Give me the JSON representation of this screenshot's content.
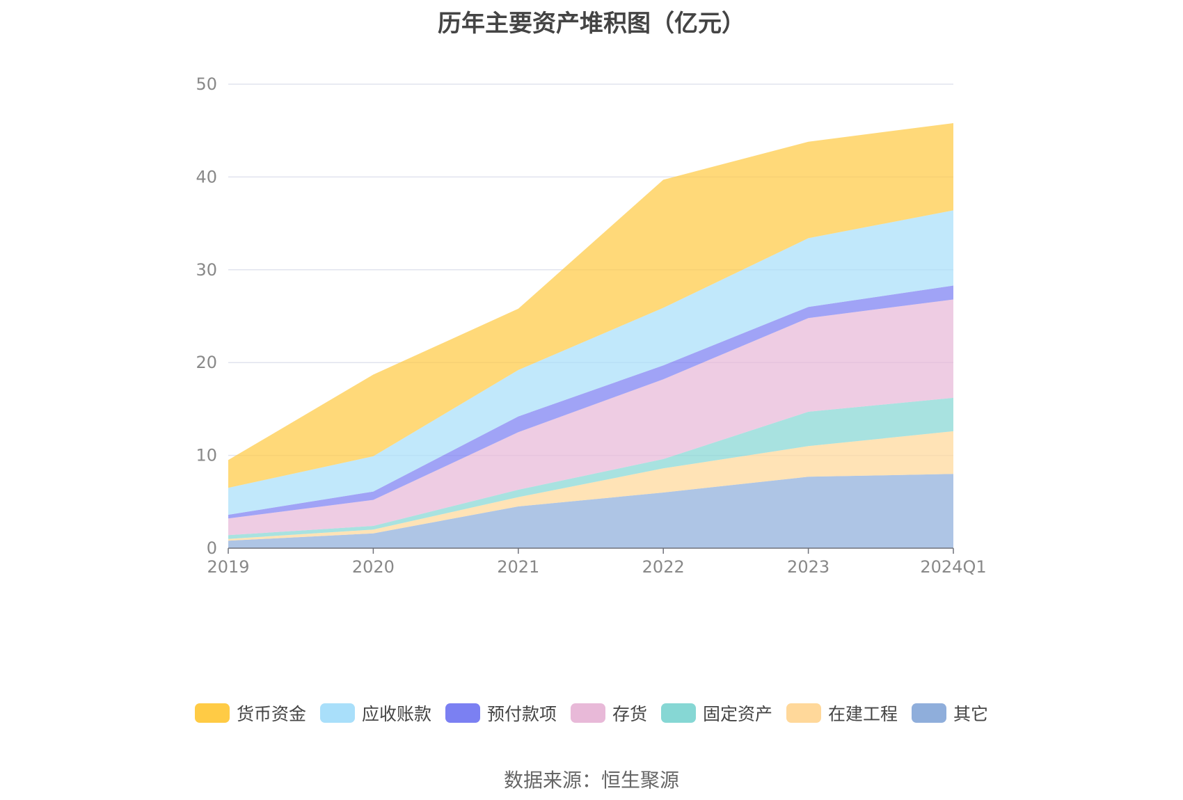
{
  "chart_data": {
    "type": "area",
    "title": "历年主要资产堆积图（亿元）",
    "xlabel": "",
    "ylabel": "",
    "ylim": [
      0,
      50
    ],
    "yticks": [
      0,
      10,
      20,
      30,
      40,
      50
    ],
    "categories": [
      "2019",
      "2020",
      "2021",
      "2022",
      "2023",
      "2024Q1"
    ],
    "stacked": true,
    "grid": true,
    "legend_position": "bottom",
    "series": [
      {
        "name": "其它",
        "color": "#8FAEDB",
        "values": [
          0.8,
          1.6,
          4.5,
          6.0,
          7.7,
          8.0
        ]
      },
      {
        "name": "在建工程",
        "color": "#FFD89A",
        "values": [
          0.2,
          0.4,
          1.0,
          2.6,
          3.3,
          4.6
        ]
      },
      {
        "name": "固定资产",
        "color": "#86D7D4",
        "values": [
          0.4,
          0.4,
          0.8,
          1.0,
          3.7,
          3.6
        ]
      },
      {
        "name": "存货",
        "color": "#E8B9D8",
        "values": [
          1.8,
          2.8,
          6.2,
          8.6,
          10.1,
          10.6
        ]
      },
      {
        "name": "预付款项",
        "color": "#7B80F2",
        "values": [
          0.4,
          0.9,
          1.7,
          1.5,
          1.2,
          1.5
        ]
      },
      {
        "name": "应收账款",
        "color": "#A9DFFA",
        "values": [
          2.9,
          3.8,
          5.0,
          6.2,
          7.4,
          8.1
        ]
      },
      {
        "name": "货币资金",
        "color": "#FFCB45",
        "values": [
          3.0,
          8.8,
          6.6,
          13.8,
          10.4,
          9.4
        ]
      }
    ]
  },
  "legend_order": [
    "货币资金",
    "应收账款",
    "预付款项",
    "存货",
    "固定资产",
    "在建工程",
    "其它"
  ],
  "source_text": "数据来源：恒生聚源"
}
